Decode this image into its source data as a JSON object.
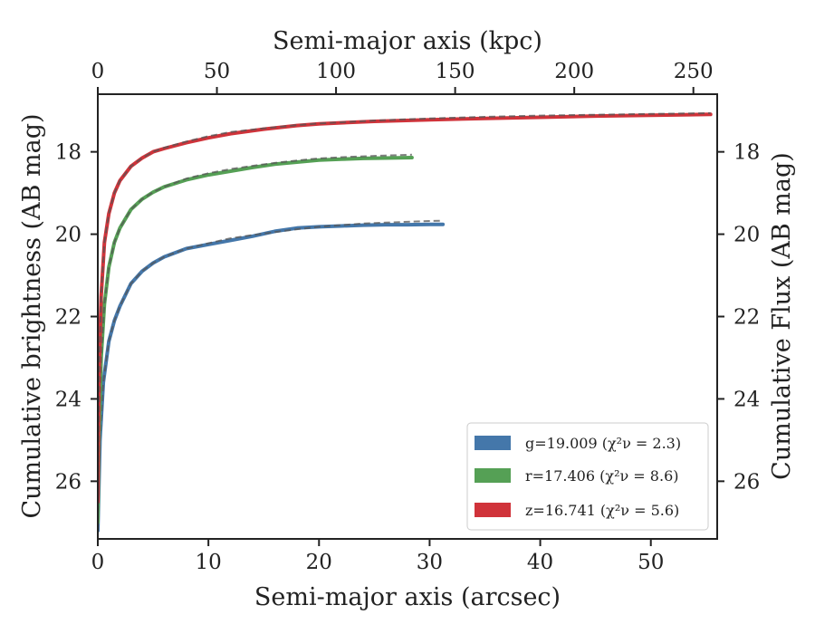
{
  "chart_data": {
    "type": "line",
    "xlabel": "Semi-major axis (arcsec)",
    "x2label": "Semi-major axis (kpc)",
    "ylabel": "Cumulative brightness (AB mag)",
    "y2label": "Cumulative Flux (AB mag)",
    "xlim": [
      0,
      56
    ],
    "x2lim": [
      0,
      260
    ],
    "ylim": [
      27.4,
      16.6
    ],
    "y_inverted": true,
    "xticks": [
      0,
      10,
      20,
      30,
      40,
      50
    ],
    "x2ticks": [
      0,
      50,
      100,
      150,
      200,
      250
    ],
    "yticks": [
      18,
      20,
      22,
      24,
      26
    ],
    "y2ticks": [
      18,
      20,
      22,
      24,
      26
    ],
    "legend_position": "lower-right",
    "series": [
      {
        "name": "g=19.009",
        "chi_label": "(χ²ν = 2.3)",
        "color": "#4477aa",
        "x": [
          0.0,
          0.2,
          0.5,
          1.0,
          1.5,
          2.0,
          3.0,
          4.0,
          5.0,
          6.0,
          8.0,
          10.0,
          12.0,
          14.0,
          16.0,
          18.0,
          20.0,
          22.0,
          24.0,
          26.0,
          28.0,
          30.0,
          31.2
        ],
        "y": [
          27.2,
          25.0,
          23.6,
          22.6,
          22.1,
          21.75,
          21.2,
          20.9,
          20.7,
          20.55,
          20.35,
          20.25,
          20.15,
          20.05,
          19.93,
          19.85,
          19.82,
          19.8,
          19.78,
          19.77,
          19.77,
          19.76,
          19.76
        ],
        "model_y": [
          27.2,
          25.0,
          23.6,
          22.6,
          22.1,
          21.75,
          21.2,
          20.9,
          20.7,
          20.55,
          20.35,
          20.22,
          20.1,
          20.02,
          19.95,
          19.88,
          19.82,
          19.78,
          19.74,
          19.72,
          19.7,
          19.68,
          19.67
        ]
      },
      {
        "name": "r=17.406",
        "chi_label": "(χ²ν = 8.6)",
        "color": "#55a055",
        "x": [
          0.0,
          0.1,
          0.3,
          0.6,
          1.0,
          1.5,
          2.0,
          3.0,
          4.0,
          5.0,
          6.0,
          8.0,
          10.0,
          12.0,
          14.0,
          16.0,
          18.0,
          20.0,
          22.0,
          24.0,
          26.0,
          28.4
        ],
        "y": [
          27.0,
          25.0,
          23.0,
          21.7,
          20.8,
          20.2,
          19.85,
          19.4,
          19.15,
          18.98,
          18.85,
          18.68,
          18.56,
          18.47,
          18.38,
          18.3,
          18.25,
          18.2,
          18.18,
          18.16,
          18.15,
          18.14
        ],
        "model_y": [
          27.0,
          25.0,
          23.0,
          21.7,
          20.8,
          20.2,
          19.85,
          19.4,
          19.15,
          18.98,
          18.85,
          18.65,
          18.52,
          18.42,
          18.34,
          18.27,
          18.21,
          18.16,
          18.13,
          18.11,
          18.09,
          18.07
        ]
      },
      {
        "name": "z=16.741",
        "chi_label": "(χ²ν = 5.6)",
        "color": "#d0333a",
        "x": [
          0.0,
          0.1,
          0.3,
          0.6,
          1.0,
          1.5,
          2.0,
          3.0,
          4.0,
          5.0,
          6.0,
          8.0,
          10.0,
          12.0,
          15.0,
          18.0,
          20.0,
          25.0,
          30.0,
          35.0,
          40.0,
          45.0,
          50.0,
          55.4
        ],
        "y": [
          26.5,
          23.5,
          21.5,
          20.2,
          19.5,
          19.0,
          18.7,
          18.35,
          18.15,
          18.0,
          17.92,
          17.78,
          17.66,
          17.56,
          17.45,
          17.36,
          17.32,
          17.26,
          17.22,
          17.19,
          17.16,
          17.13,
          17.11,
          17.09
        ],
        "model_y": [
          26.5,
          23.5,
          21.5,
          20.2,
          19.5,
          19.0,
          18.7,
          18.35,
          18.15,
          18.0,
          17.9,
          17.75,
          17.62,
          17.52,
          17.43,
          17.35,
          17.31,
          17.24,
          17.19,
          17.15,
          17.12,
          17.1,
          17.08,
          17.06
        ]
      }
    ]
  }
}
